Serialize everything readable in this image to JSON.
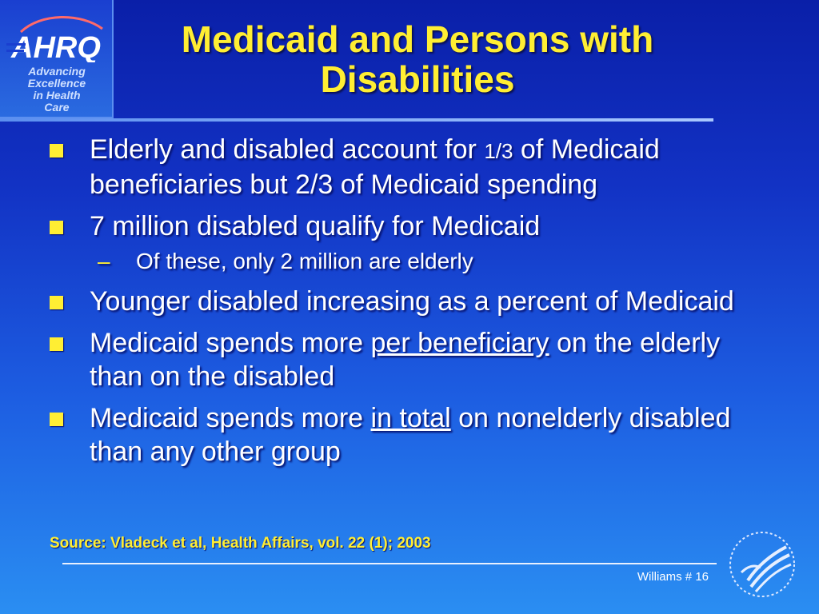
{
  "logo": {
    "wordmark": "AHRQ",
    "tagline": "Advancing\nExcellence\nin Health\nCare"
  },
  "title": "Medicaid and Persons with Disabilities",
  "bullets": [
    {
      "pre": "Elderly and disabled account for ",
      "frac": "1/3",
      "post": " of Medicaid beneficiaries but 2/3 of Medicaid spending"
    },
    {
      "text": "7 million disabled qualify for Medicaid"
    },
    {
      "sub": "Of these, only 2 million are elderly",
      "dash": "–"
    },
    {
      "text": "Younger disabled increasing as a percent of Medicaid"
    },
    {
      "pre": "Medicaid spends more ",
      "u": "per beneficiary",
      "post": " on the elderly than on the disabled"
    },
    {
      "pre": "Medicaid spends more ",
      "u": "in total",
      "post": " on nonelderly disabled than any other group"
    }
  ],
  "source": "Source: Vladeck et al, Health Affairs, vol. 22 (1); 2003",
  "footer": "Williams # 16",
  "seal_icon": "hhs-eagle-seal-icon",
  "colors": {
    "title": "#ffee33",
    "bullet": "#ffee33",
    "text": "#ffffff",
    "background_top": "#0a1fa8",
    "background_bottom": "#2a8ef2"
  }
}
